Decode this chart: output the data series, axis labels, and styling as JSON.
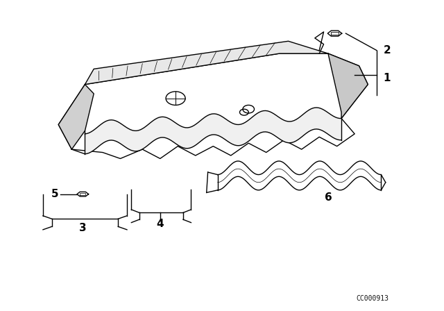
{
  "background_color": "#ffffff",
  "line_color": "#000000",
  "watermark": "CC000913",
  "fig_width": 6.4,
  "fig_height": 4.48,
  "dpi": 100
}
